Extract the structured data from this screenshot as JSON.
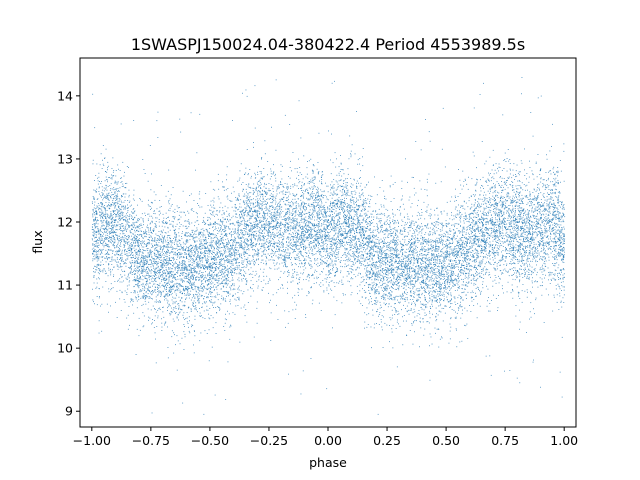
{
  "chart_data": {
    "type": "scatter",
    "title": "1SWASPJ150024.04-380422.4 Period 4553989.5s",
    "xlabel": "phase",
    "ylabel": "flux",
    "xlim": [
      -1.05,
      1.05
    ],
    "ylim": [
      8.75,
      14.6
    ],
    "xticks": [
      -1.0,
      -0.75,
      -0.5,
      -0.25,
      0.0,
      0.25,
      0.5,
      0.75,
      1.0
    ],
    "xtick_labels": [
      "−1.00",
      "−0.75",
      "−0.50",
      "−0.25",
      "0.00",
      "0.25",
      "0.50",
      "0.75",
      "1.00"
    ],
    "yticks": [
      9,
      10,
      11,
      12,
      13,
      14
    ],
    "ytick_labels": [
      "9",
      "10",
      "11",
      "12",
      "13",
      "14"
    ],
    "grid": false,
    "legend": "none",
    "marker_color": "#1f77b4",
    "phase_profile": {
      "x": [
        -1.0,
        -0.95,
        -0.875,
        -0.8,
        -0.7,
        -0.6,
        -0.5,
        -0.42,
        -0.33,
        -0.25,
        -0.15,
        -0.05,
        0.0,
        0.05,
        0.125,
        0.2,
        0.3,
        0.4,
        0.5,
        0.58,
        0.67,
        0.75,
        0.85,
        0.95,
        1.0
      ],
      "median_flux": [
        11.7,
        12.0,
        11.9,
        11.4,
        11.35,
        11.3,
        11.35,
        11.5,
        11.9,
        12.0,
        11.8,
        12.0,
        11.7,
        12.0,
        11.9,
        11.4,
        11.35,
        11.3,
        11.35,
        11.5,
        11.9,
        12.0,
        11.8,
        12.0,
        11.7
      ],
      "spread": 0.45
    },
    "point_count": 14000
  }
}
